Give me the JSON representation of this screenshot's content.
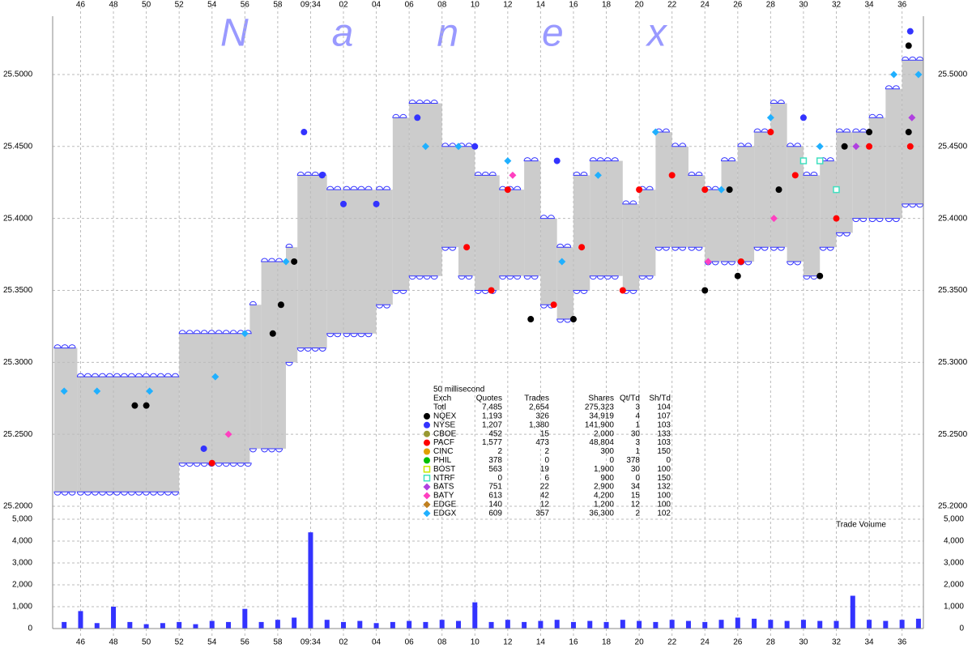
{
  "chart_data": {
    "type": "tick",
    "watermark": "Nanex",
    "xlim": [
      44.3,
      97.3
    ],
    "xticks": [
      46,
      48,
      50,
      52,
      54,
      56,
      58,
      {
        "value": 60,
        "label": "09:34"
      },
      {
        "value": 62,
        "label": "02"
      },
      {
        "value": 64,
        "label": "04"
      },
      {
        "value": 66,
        "label": "06"
      },
      {
        "value": 68,
        "label": "08"
      },
      {
        "value": 70,
        "label": "10"
      },
      {
        "value": 72,
        "label": "12"
      },
      {
        "value": 74,
        "label": "14"
      },
      {
        "value": 76,
        "label": "16"
      },
      {
        "value": 78,
        "label": "18"
      },
      {
        "value": 80,
        "label": "20"
      },
      {
        "value": 82,
        "label": "22"
      },
      {
        "value": 84,
        "label": "24"
      },
      {
        "value": 86,
        "label": "26"
      },
      {
        "value": 88,
        "label": "28"
      },
      {
        "value": 90,
        "label": "30"
      },
      {
        "value": 92,
        "label": "32"
      },
      {
        "value": 94,
        "label": "34"
      },
      {
        "value": 96,
        "label": "36"
      }
    ],
    "ylim": [
      25.1972,
      25.5405
    ],
    "yticks": [
      {
        "value": 25.2,
        "label": "25.2000"
      },
      {
        "value": 25.25,
        "label": "25.2500"
      },
      {
        "value": 25.3,
        "label": "25.3000"
      },
      {
        "value": 25.35,
        "label": "25.3500"
      },
      {
        "value": 25.4,
        "label": "25.4000"
      },
      {
        "value": 25.45,
        "label": "25.4500"
      },
      {
        "value": 25.5,
        "label": "25.5000"
      }
    ],
    "grid": true,
    "band": {
      "color": "#cccccc",
      "x": [
        44.4,
        45.8,
        52.0,
        56.3,
        57.0,
        58.5,
        59.2,
        61,
        62,
        64,
        65,
        66,
        68,
        69,
        70,
        71.5,
        73,
        74,
        75,
        76,
        77,
        79,
        80,
        81,
        82,
        83,
        84,
        85,
        86,
        87,
        88,
        89,
        90,
        91,
        92,
        93,
        94,
        95,
        96
      ],
      "low": [
        25.21,
        25.21,
        25.23,
        25.24,
        25.24,
        25.3,
        25.31,
        25.32,
        25.32,
        25.34,
        25.35,
        25.36,
        25.38,
        25.36,
        25.35,
        25.36,
        25.36,
        25.34,
        25.33,
        25.35,
        25.36,
        25.35,
        25.36,
        25.38,
        25.38,
        25.38,
        25.37,
        25.37,
        25.37,
        25.38,
        25.38,
        25.37,
        25.36,
        25.38,
        25.39,
        25.4,
        25.4,
        25.4,
        25.41
      ],
      "high": [
        25.31,
        25.29,
        25.32,
        25.34,
        25.37,
        25.38,
        25.43,
        25.42,
        25.42,
        25.42,
        25.47,
        25.48,
        25.45,
        25.45,
        25.43,
        25.42,
        25.44,
        25.4,
        25.38,
        25.43,
        25.44,
        25.41,
        25.42,
        25.46,
        25.45,
        25.43,
        25.42,
        25.44,
        25.45,
        25.46,
        25.48,
        25.45,
        25.43,
        25.44,
        25.46,
        25.46,
        25.47,
        25.49,
        25.51
      ]
    },
    "table": {
      "title": "50 millisecond",
      "headers": [
        "Exch",
        "Quotes",
        "Trades",
        "Shares",
        "Qt/Td",
        "Sh/Td"
      ]
    },
    "exchanges": [
      {
        "name": "Totl",
        "cells": [
          "7,485",
          "2,654",
          "275,323",
          "3",
          "104"
        ]
      },
      {
        "name": "NQEX",
        "color": "#000000",
        "marker": "circle",
        "cells": [
          "1,193",
          "326",
          "34,919",
          "4",
          "107"
        ],
        "x": [
          59.0,
          58.2,
          57.7,
          50.0,
          49.3,
          73.4,
          76.0,
          84.0,
          85.5,
          86.0,
          88.5,
          91.0,
          92.5,
          94.0,
          96.4,
          96.4
        ],
        "values": [
          25.37,
          25.34,
          25.32,
          25.27,
          25.27,
          25.33,
          25.33,
          25.35,
          25.42,
          25.36,
          25.42,
          25.36,
          25.45,
          25.46,
          25.52,
          25.46
        ]
      },
      {
        "name": "NYSE",
        "color": "#3333ff",
        "marker": "circle",
        "cells": [
          "1,207",
          "1,380",
          "141,900",
          "1",
          "103"
        ],
        "x": [
          59.6,
          60.7,
          96.5,
          53.5,
          62.0,
          64.0,
          70.0,
          66.5,
          75.0,
          90.0
        ],
        "values": [
          25.46,
          25.43,
          25.53,
          25.24,
          25.41,
          25.41,
          25.45,
          25.47,
          25.44,
          25.47
        ]
      },
      {
        "name": "CBOE",
        "color": "#999933",
        "marker": "circle",
        "cells": [
          "452",
          "15",
          "2,000",
          "30",
          "133"
        ]
      },
      {
        "name": "PACF",
        "color": "#ff0000",
        "marker": "circle",
        "cells": [
          "1,577",
          "473",
          "48,804",
          "3",
          "103"
        ],
        "x": [
          71.0,
          69.5,
          72.0,
          74.8,
          76.5,
          79.0,
          80.0,
          82.0,
          84.0,
          86.2,
          88.0,
          89.5,
          92.0,
          94.0,
          96.5,
          54.0
        ],
        "values": [
          25.35,
          25.38,
          25.42,
          25.34,
          25.38,
          25.35,
          25.42,
          25.43,
          25.42,
          25.37,
          25.46,
          25.43,
          25.4,
          25.45,
          25.45,
          25.23
        ]
      },
      {
        "name": "CINC",
        "color": "#e0a000",
        "marker": "circle",
        "cells": [
          "2",
          "2",
          "300",
          "1",
          "150"
        ]
      },
      {
        "name": "PHIL",
        "color": "#00c000",
        "marker": "circle",
        "cells": [
          "378",
          "0",
          "0",
          "378",
          "0"
        ]
      },
      {
        "name": "BOST",
        "color": "#c8e800",
        "marker": "square",
        "cells": [
          "563",
          "19",
          "1,900",
          "30",
          "100"
        ]
      },
      {
        "name": "NTRF",
        "color": "#40e0c0",
        "marker": "square",
        "cells": [
          "0",
          "6",
          "900",
          "0",
          "150"
        ],
        "x": [
          90.0,
          91.0,
          92.0
        ],
        "values": [
          25.44,
          25.44,
          25.42
        ]
      },
      {
        "name": "BATS",
        "color": "#b040e0",
        "marker": "diamond",
        "cells": [
          "751",
          "22",
          "2,900",
          "34",
          "132"
        ],
        "x": [
          96.6,
          93.2
        ],
        "values": [
          25.47,
          25.45
        ]
      },
      {
        "name": "BATY",
        "color": "#ff40c0",
        "marker": "diamond",
        "cells": [
          "613",
          "42",
          "4,200",
          "15",
          "100"
        ],
        "x": [
          72.3,
          88.2,
          84.2,
          55.0
        ],
        "values": [
          25.43,
          25.4,
          25.37,
          25.25
        ]
      },
      {
        "name": "EDGE",
        "color": "#c08020",
        "marker": "diamond",
        "cells": [
          "140",
          "12",
          "1,200",
          "12",
          "100"
        ]
      },
      {
        "name": "EDGX",
        "color": "#20b0ff",
        "marker": "diamond",
        "cells": [
          "609",
          "357",
          "36,300",
          "2",
          "102"
        ],
        "x": [
          45.0,
          47.0,
          50.2,
          54.2,
          56.0,
          58.5,
          67.0,
          69.0,
          72.0,
          75.3,
          77.5,
          81.0,
          85.0,
          88.0,
          91.0,
          95.5,
          97.0
        ],
        "values": [
          25.28,
          25.28,
          25.28,
          25.29,
          25.32,
          25.37,
          25.45,
          25.45,
          25.44,
          25.37,
          25.43,
          25.46,
          25.42,
          25.47,
          25.45,
          25.5,
          25.5
        ]
      }
    ],
    "volume": {
      "title": "Trade Volume",
      "color": "#3333ff",
      "ylim": [
        0,
        5000
      ],
      "yticks": [
        0,
        {
          "value": 1000,
          "label": "1,000"
        },
        {
          "value": 2000,
          "label": "2,000"
        },
        {
          "value": 3000,
          "label": "3,000"
        },
        {
          "value": 4000,
          "label": "4,000"
        },
        {
          "value": 5000,
          "label": "5,000"
        }
      ],
      "x": [
        45,
        46,
        47,
        48,
        49,
        50,
        51,
        52,
        53,
        54,
        55,
        56,
        57,
        58,
        59,
        60,
        61,
        62,
        63,
        64,
        65,
        66,
        67,
        68,
        69,
        70,
        71,
        72,
        73,
        74,
        75,
        76,
        77,
        78,
        79,
        80,
        81,
        82,
        83,
        84,
        85,
        86,
        87,
        88,
        89,
        90,
        91,
        92,
        93,
        94,
        95,
        96,
        97
      ],
      "values": [
        300,
        800,
        250,
        1000,
        300,
        200,
        250,
        300,
        200,
        350,
        300,
        900,
        300,
        400,
        500,
        4400,
        400,
        300,
        350,
        250,
        300,
        350,
        300,
        400,
        350,
        1200,
        300,
        400,
        300,
        350,
        400,
        300,
        350,
        300,
        400,
        350,
        300,
        400,
        350,
        300,
        400,
        500,
        450,
        400,
        350,
        400,
        350,
        350,
        1500,
        400,
        350,
        400,
        450
      ]
    }
  }
}
